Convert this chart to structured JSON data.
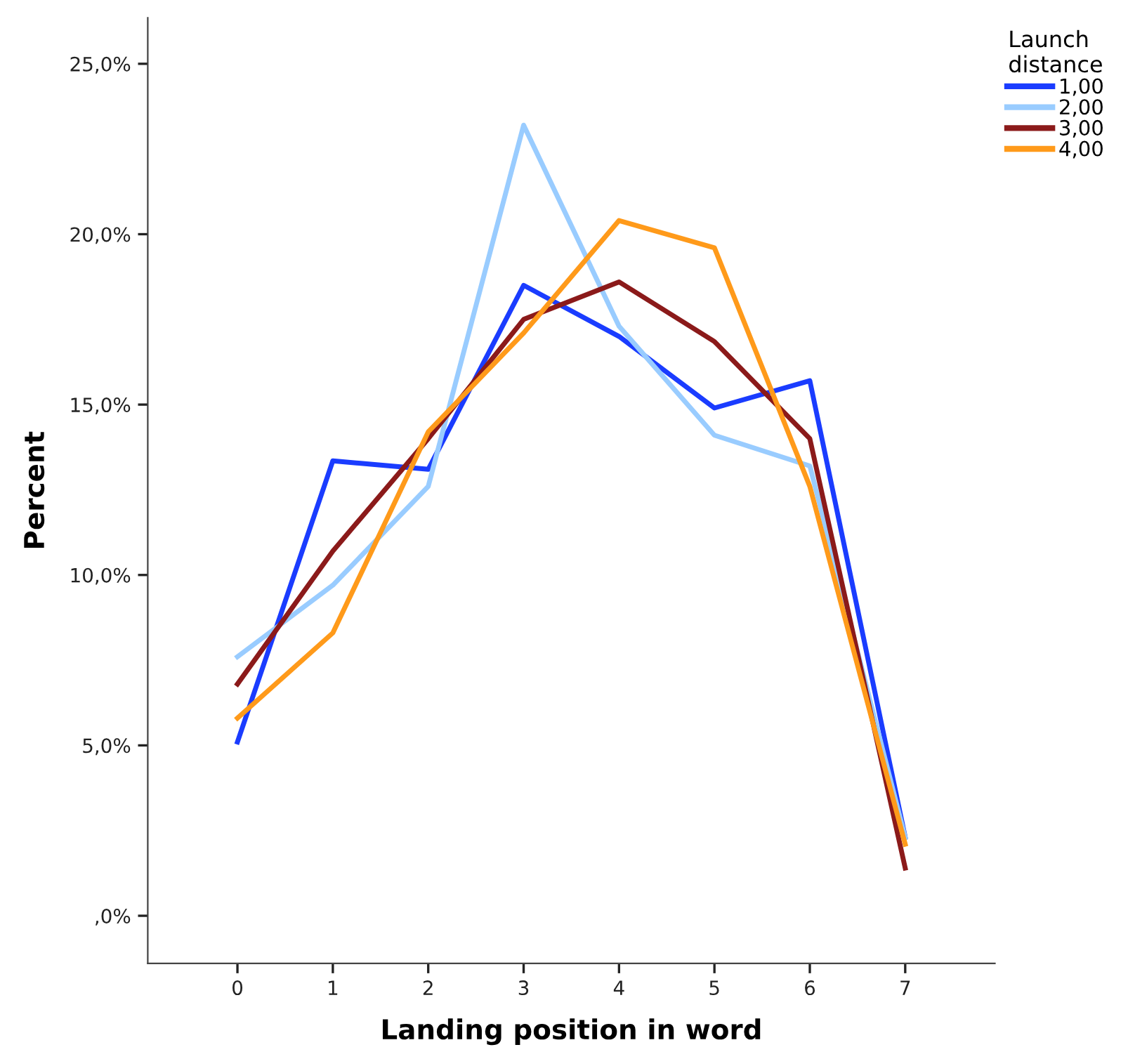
{
  "chart_data": {
    "type": "line",
    "xlabel": "Landing position in word",
    "ylabel": "Percent",
    "legend_title": "Launch\ndistance",
    "x": [
      0,
      1,
      2,
      3,
      4,
      5,
      6,
      7
    ],
    "series": [
      {
        "name": "1,00",
        "color": "#1a3cff",
        "values": [
          5.1,
          13.35,
          13.1,
          18.5,
          17.0,
          14.9,
          15.7,
          2.3
        ]
      },
      {
        "name": "2,00",
        "color": "#99ccff",
        "values": [
          7.6,
          9.7,
          12.6,
          23.2,
          17.3,
          14.1,
          13.2,
          2.3
        ]
      },
      {
        "name": "3,00",
        "color": "#8b1a1a",
        "values": [
          6.8,
          10.7,
          14.0,
          17.5,
          18.6,
          16.85,
          14.0,
          1.4
        ]
      },
      {
        "name": "4,00",
        "color": "#ff9a1a",
        "values": [
          5.8,
          8.3,
          14.2,
          17.1,
          20.4,
          19.6,
          12.6,
          2.1
        ]
      }
    ],
    "xlim": [
      -0.94,
      7.94
    ],
    "xticks": [
      0,
      1,
      2,
      3,
      4,
      5,
      6,
      7
    ],
    "ylim": [
      -1.4,
      26.35
    ],
    "yticks": [
      {
        "value": 0,
        "label": ",0%"
      },
      {
        "value": 5,
        "label": "5,0%"
      },
      {
        "value": 10,
        "label": "10,0%"
      },
      {
        "value": 15,
        "label": "15,0%"
      },
      {
        "value": 20,
        "label": "20,0%"
      },
      {
        "value": 25,
        "label": "25,0%"
      }
    ],
    "grid": false,
    "legend": "top right",
    "marker": "none",
    "line_style": "solid"
  }
}
